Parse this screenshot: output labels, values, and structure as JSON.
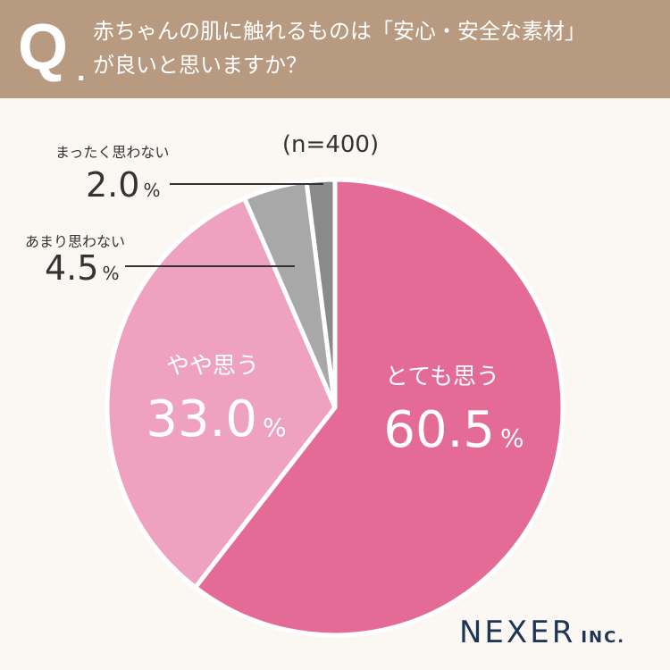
{
  "header": {
    "q_mark": "Q",
    "q_dot": ".",
    "line1": "赤ちゃんの肌に触れるものは「安心・安全な素材」",
    "line2": "が良いと思いますか？"
  },
  "chart_data": {
    "type": "pie",
    "sample_size_label": "(n=400)",
    "percent_sign": "%",
    "slices": [
      {
        "label": "とても思う",
        "value": 60.5,
        "value_text": "60.5",
        "color": "#e56b97"
      },
      {
        "label": "やや思う",
        "value": 33.0,
        "value_text": "33.0",
        "color": "#eea2bf"
      },
      {
        "label": "あまり思わない",
        "value": 4.5,
        "value_text": "4.5",
        "color": "#a8a8a8"
      },
      {
        "label": "まったく思わない",
        "value": 2.0,
        "value_text": "2.0",
        "color": "#8a8a8a"
      }
    ],
    "start": "12 o'clock",
    "direction": "clockwise"
  },
  "logo": {
    "main": "NEXER",
    "sub": "INC."
  }
}
